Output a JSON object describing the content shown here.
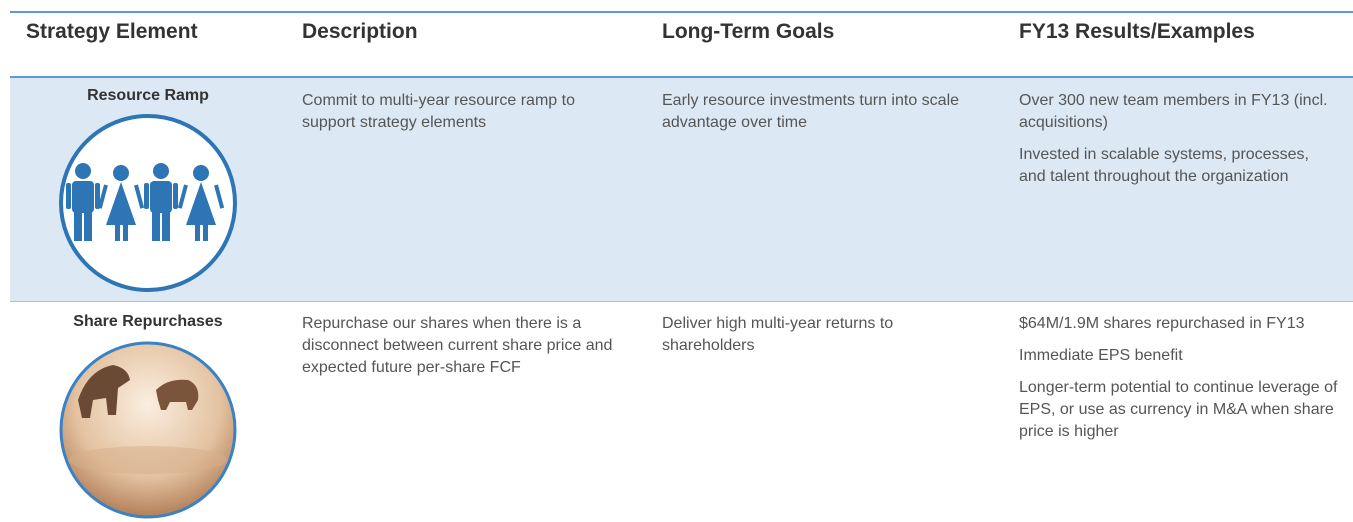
{
  "table": {
    "headers": [
      "Strategy Element",
      "Description",
      "Long-Term Goals",
      "FY13 Results/Examples"
    ],
    "rows": [
      {
        "element": "Resource Ramp",
        "description": "Commit to multi-year resource ramp to support strategy elements",
        "goals": "Early resource investments turn into scale advantage over time",
        "results": [
          "Over 300 new team members in FY13 (incl. acquisitions)",
          "Invested in scalable systems, processes, and talent throughout the organization"
        ]
      },
      {
        "element": "Share Repurchases",
        "description": "Repurchase our shares when there is a disconnect between current share price and expected future per-share FCF",
        "goals": "Deliver high multi-year returns to shareholders",
        "results": [
          "$64M/1.9M shares repurchased in FY13",
          "Immediate EPS benefit",
          "Longer-term potential to continue leverage of EPS, or use as currency in M&A when share price is higher"
        ]
      }
    ]
  }
}
